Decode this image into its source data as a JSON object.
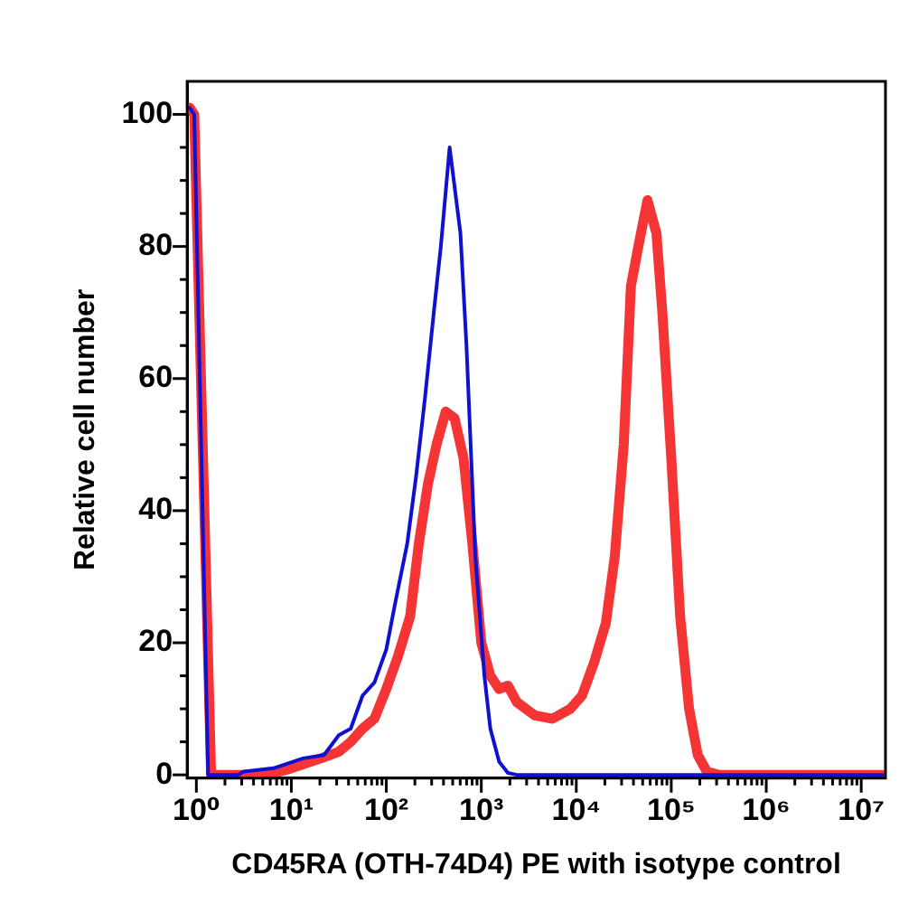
{
  "chart_data": {
    "type": "line",
    "xlabel": "CD45RA (OTH-74D4) PE with isotype control",
    "ylabel": "Relative cell number",
    "log": "x",
    "grid": false,
    "legend": false,
    "marker": "none",
    "line_style": "solid",
    "xlim": [
      0.8,
      18000000
    ],
    "ylim": [
      -0.5,
      105
    ],
    "xticks": [
      {
        "value": 1,
        "label": "10⁰"
      },
      {
        "value": 2,
        "label": null
      },
      {
        "value": 3,
        "label": null
      },
      {
        "value": 4,
        "label": null
      },
      {
        "value": 5,
        "label": null
      },
      {
        "value": 6,
        "label": null
      },
      {
        "value": 7,
        "label": null
      },
      {
        "value": 8,
        "label": null
      },
      {
        "value": 9,
        "label": null
      },
      {
        "value": 10,
        "label": "10¹"
      },
      {
        "value": 20,
        "label": null
      },
      {
        "value": 30,
        "label": null
      },
      {
        "value": 40,
        "label": null
      },
      {
        "value": 50,
        "label": null
      },
      {
        "value": 60,
        "label": null
      },
      {
        "value": 70,
        "label": null
      },
      {
        "value": 80,
        "label": null
      },
      {
        "value": 90,
        "label": null
      },
      {
        "value": 100,
        "label": "10²"
      },
      {
        "value": 200,
        "label": null
      },
      {
        "value": 300,
        "label": null
      },
      {
        "value": 400,
        "label": null
      },
      {
        "value": 500,
        "label": null
      },
      {
        "value": 600,
        "label": null
      },
      {
        "value": 700,
        "label": null
      },
      {
        "value": 800,
        "label": null
      },
      {
        "value": 900,
        "label": null
      },
      {
        "value": 1000,
        "label": "10³"
      },
      {
        "value": 2000,
        "label": null
      },
      {
        "value": 3000,
        "label": null
      },
      {
        "value": 4000,
        "label": null
      },
      {
        "value": 5000,
        "label": null
      },
      {
        "value": 6000,
        "label": null
      },
      {
        "value": 7000,
        "label": null
      },
      {
        "value": 8000,
        "label": null
      },
      {
        "value": 9000,
        "label": null
      },
      {
        "value": 10000,
        "label": "10⁴"
      },
      {
        "value": 20000,
        "label": null
      },
      {
        "value": 30000,
        "label": null
      },
      {
        "value": 40000,
        "label": null
      },
      {
        "value": 50000,
        "label": null
      },
      {
        "value": 60000,
        "label": null
      },
      {
        "value": 70000,
        "label": null
      },
      {
        "value": 80000,
        "label": null
      },
      {
        "value": 90000,
        "label": null
      },
      {
        "value": 100000,
        "label": "10⁵"
      },
      {
        "value": 200000,
        "label": null
      },
      {
        "value": 300000,
        "label": null
      },
      {
        "value": 400000,
        "label": null
      },
      {
        "value": 500000,
        "label": null
      },
      {
        "value": 600000,
        "label": null
      },
      {
        "value": 700000,
        "label": null
      },
      {
        "value": 800000,
        "label": null
      },
      {
        "value": 900000,
        "label": null
      },
      {
        "value": 1000000,
        "label": "10⁶"
      },
      {
        "value": 2000000,
        "label": null
      },
      {
        "value": 3000000,
        "label": null
      },
      {
        "value": 4000000,
        "label": null
      },
      {
        "value": 5000000,
        "label": null
      },
      {
        "value": 6000000,
        "label": null
      },
      {
        "value": 7000000,
        "label": null
      },
      {
        "value": 8000000,
        "label": null
      },
      {
        "value": 9000000,
        "label": null
      },
      {
        "value": 10000000,
        "label": "10⁷"
      }
    ],
    "yticks": [
      0,
      {
        "value": 5,
        "label": null
      },
      {
        "value": 10,
        "label": null
      },
      {
        "value": 15,
        "label": null
      },
      20,
      {
        "value": 25,
        "label": null
      },
      {
        "value": 30,
        "label": null
      },
      {
        "value": 35,
        "label": null
      },
      40,
      {
        "value": 45,
        "label": null
      },
      {
        "value": 50,
        "label": null
      },
      {
        "value": 55,
        "label": null
      },
      60,
      {
        "value": 65,
        "label": null
      },
      {
        "value": 70,
        "label": null
      },
      {
        "value": 75,
        "label": null
      },
      80,
      {
        "value": 85,
        "label": null
      },
      {
        "value": 90,
        "label": null
      },
      {
        "value": 95,
        "label": null
      },
      100
    ],
    "series": [
      {
        "color": "#f53535",
        "x": [
          0.85,
          0.95,
          1.43,
          5.62,
          10,
          20.5,
          31.6,
          42.2,
          56.2,
          75,
          100,
          133,
          178,
          220,
          274,
          338,
          422,
          523,
          649,
          805,
          1000,
          1245,
          1540,
          1905,
          2371,
          3652,
          5623,
          8660,
          11500,
          15400,
          20500,
          25400,
          31600,
          37600,
          45000,
          56200,
          69800,
          80600,
          100000,
          124000,
          154000,
          190000,
          237000,
          316000,
          16600000
        ],
        "values": [
          101,
          100,
          0,
          0,
          1,
          2.5,
          3.5,
          5,
          7,
          8.5,
          13,
          18,
          24,
          35,
          44,
          50,
          55,
          54,
          48,
          35,
          20,
          15,
          13,
          13.5,
          11,
          9,
          8.5,
          10,
          12,
          17,
          23,
          33,
          50,
          74,
          80,
          87,
          82,
          70,
          48,
          24,
          10,
          3,
          0.5,
          0,
          0
        ]
      },
      {
        "color": "#1010d0",
        "x": [
          0.85,
          0.95,
          1.33,
          2.74,
          3.16,
          6.49,
          13.3,
          22.1,
          31.6,
          42.2,
          56.2,
          75,
          100,
          124,
          166,
          205,
          255,
          316,
          375,
          464,
          603,
          698,
          866,
          1078,
          1245,
          1540,
          1905,
          2371,
          16600000
        ],
        "values": [
          101,
          100,
          0,
          0,
          0.5,
          1,
          2.5,
          3,
          6,
          7,
          12,
          14,
          19,
          26,
          35,
          45,
          57,
          70,
          80,
          95,
          82,
          65,
          33,
          15,
          7,
          2,
          0.3,
          0,
          0
        ]
      }
    ]
  }
}
